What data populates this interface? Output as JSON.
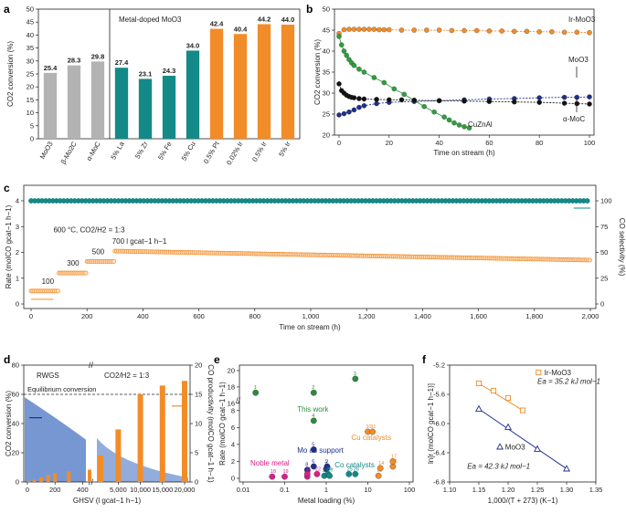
{
  "chart_data": [
    {
      "panel": "a",
      "type": "bar",
      "ylabel": "CO2 conversion (%)",
      "ylim": [
        0,
        50
      ],
      "yticks": [
        0,
        5,
        10,
        15,
        20,
        25,
        30,
        35,
        40,
        45,
        50
      ],
      "annotation": "Metal-doped MoO3",
      "categories": [
        "MoO3",
        "β-Mo2C",
        "α-MoC",
        "5% La",
        "5% Zr",
        "5% Fe",
        "5% Cu",
        "0.5% Pt",
        "0.02% Ir",
        "0.5% Ir",
        "5% Ir"
      ],
      "values": [
        25.4,
        28.3,
        29.8,
        27.4,
        23.1,
        24.3,
        34.0,
        42.4,
        40.4,
        44.2,
        44.0
      ],
      "value_labels": [
        "25.4",
        "28.3",
        "29.8",
        "27.4",
        "23.1",
        "24.3",
        "34.0",
        "42.4",
        "40.4",
        "44.2",
        "44.0"
      ],
      "colors": [
        "#b3b3b3",
        "#b3b3b3",
        "#b3b3b3",
        "#138a88",
        "#138a88",
        "#138a88",
        "#138a88",
        "#f28c28",
        "#f28c28",
        "#f28c28",
        "#f28c28"
      ]
    },
    {
      "panel": "b",
      "type": "line",
      "xlabel": "Time on stream (h)",
      "ylabel": "CO2 conversion (%)",
      "xlim": [
        0,
        100
      ],
      "ylim": [
        20,
        50
      ],
      "xticks": [
        0,
        20,
        40,
        60,
        80,
        100
      ],
      "yticks": [
        20,
        25,
        30,
        35,
        40,
        45,
        50
      ],
      "series": [
        {
          "name": "Ir-MoO3",
          "color": "#f28c28",
          "x": [
            0,
            2,
            4,
            6,
            8,
            10,
            12,
            14,
            16,
            18,
            20,
            25,
            30,
            35,
            40,
            45,
            50,
            55,
            60,
            65,
            70,
            75,
            80,
            85,
            90,
            95,
            100
          ],
          "y": [
            44.2,
            45.1,
            45.2,
            45.2,
            45.2,
            45.2,
            45.2,
            45.2,
            45.1,
            45.1,
            45.1,
            45.0,
            45.0,
            45.0,
            45.0,
            44.9,
            44.9,
            44.9,
            44.8,
            44.8,
            44.7,
            44.7,
            44.6,
            44.6,
            44.5,
            44.5,
            44.4
          ]
        },
        {
          "name": "CuZnAl",
          "color": "#2e9e3e",
          "x": [
            0,
            1,
            2,
            3,
            4,
            5,
            6,
            8,
            10,
            14,
            18,
            22,
            26,
            30,
            34,
            38,
            42,
            44,
            46,
            48,
            50,
            52
          ],
          "y": [
            43.5,
            41.5,
            40.0,
            39.0,
            38.0,
            37.2,
            36.6,
            35.7,
            35.0,
            33.7,
            32.5,
            31.0,
            29.7,
            28.3,
            26.8,
            25.5,
            24.3,
            23.6,
            22.9,
            22.4,
            22.0,
            21.7
          ]
        },
        {
          "name": "MoO3",
          "color": "#1f2f8a",
          "x": [
            0,
            2,
            4,
            6,
            8,
            10,
            15,
            20,
            30,
            40,
            50,
            60,
            70,
            80,
            90,
            95,
            100
          ],
          "y": [
            24.8,
            25.1,
            25.5,
            26.0,
            26.6,
            27.0,
            27.5,
            27.8,
            28.0,
            28.2,
            28.4,
            28.6,
            28.7,
            28.9,
            29.0,
            29.0,
            29.1
          ]
        },
        {
          "name": "α-MoC",
          "color": "#111111",
          "x": [
            0,
            1,
            2,
            3,
            4,
            5,
            6,
            8,
            10,
            15,
            20,
            25,
            30,
            40,
            50,
            60,
            70,
            80,
            90,
            95,
            100
          ],
          "y": [
            32.2,
            30.6,
            30.0,
            29.5,
            29.2,
            29.0,
            28.9,
            28.7,
            28.6,
            28.5,
            28.4,
            28.4,
            28.3,
            28.2,
            28.1,
            28.0,
            27.9,
            27.8,
            27.6,
            27.5,
            27.4
          ]
        }
      ]
    },
    {
      "panel": "c",
      "type": "scatter",
      "xlabel": "Time on stream (h)",
      "ylabel_left": "Rate (molCO gcat−1 h−1)",
      "ylabel_right": "CO selectivity (%)",
      "xlim": [
        0,
        2000
      ],
      "ylim_left": [
        0,
        4
      ],
      "ylim_right": [
        0,
        100
      ],
      "xticks": [
        0,
        200,
        400,
        600,
        800,
        1000,
        1200,
        1400,
        1600,
        1800,
        2000
      ],
      "yticks_left": [
        0,
        1,
        2,
        3,
        4
      ],
      "yticks_right": [
        0,
        25,
        50,
        75,
        100
      ],
      "condition": "600 °C, CO2/H2 = 1:3",
      "ghsv_labels": [
        "100",
        "300",
        "500",
        "700 l gcat−1 h−1"
      ],
      "rate_segments": [
        {
          "x_start": 0,
          "x_end": 100,
          "rate": 0.5,
          "ghsv": 100
        },
        {
          "x_start": 100,
          "x_end": 200,
          "rate": 1.2,
          "ghsv": 300
        },
        {
          "x_start": 200,
          "x_end": 300,
          "rate": 1.65,
          "ghsv": 500
        },
        {
          "x_start": 300,
          "x_end": 2000,
          "rate_start": 2.05,
          "rate_end": 1.7,
          "ghsv": 700
        }
      ],
      "co_selectivity": 100
    },
    {
      "panel": "d",
      "type": "bar",
      "xlabel": "GHSV (l gcat−1 h−1)",
      "ylabel_left": "CO2 conversion (%)",
      "ylabel_right": "CO productivity (molCO gcat−1 h−1)",
      "ylim_left": [
        0,
        80
      ],
      "ylim_right": [
        0,
        20
      ],
      "xticks": [
        "0",
        "200",
        "400",
        "5,000",
        "10,000",
        "15,000",
        "20,000"
      ],
      "title_left": "RWGS",
      "title_right": "CO2/H2 = 1:3",
      "equilibrium_label": "Equilibrium conversion",
      "equilibrium_value": 60,
      "ghsv_low": [
        10,
        50,
        100,
        150,
        200,
        300,
        450
      ],
      "co_productivity_low": [
        0.2,
        0.4,
        0.8,
        1.2,
        1.5,
        1.8,
        2.1
      ],
      "ghsv_high": [
        1000,
        5000,
        10000,
        15000,
        20000
      ],
      "co_productivity_high": [
        4.5,
        9.0,
        15.0,
        16.5,
        17.3
      ]
    },
    {
      "panel": "e",
      "type": "scatter",
      "xlabel": "Metal loading (%)",
      "ylabel": "Rate (molCO gcat−1 h−1)",
      "xscale": "log",
      "xlim": [
        0.01,
        100
      ],
      "xticks": [
        "0.01",
        "0.1",
        "1",
        "10",
        "100"
      ],
      "yticks": [
        0,
        2,
        4,
        6,
        8,
        16,
        18,
        20
      ],
      "group_labels": [
        "This work",
        "Cu catalysts",
        "Mo as support",
        "Co catalysts",
        "Noble metal"
      ],
      "points": [
        {
          "id": "1",
          "group": "This work",
          "x": 0.02,
          "y": 17.3
        },
        {
          "id": "2",
          "group": "This work",
          "x": 0.5,
          "y": 17.3
        },
        {
          "id": "3",
          "group": "This work",
          "x": 5,
          "y": 19.0
        },
        {
          "id": "4",
          "group": "This work",
          "x": 0.5,
          "y": 6.8
        },
        {
          "id": "5",
          "group": "Mo as support",
          "x": 0.5,
          "y": 3.4
        },
        {
          "id": "6",
          "group": "Mo as support",
          "x": 0.5,
          "y": 1.4
        },
        {
          "id": "7",
          "group": "Mo as support",
          "x": 1.0,
          "y": 1.1
        },
        {
          "id": "8",
          "group": "Mo as support",
          "x": 0.35,
          "y": 1.0
        },
        {
          "id": "9",
          "group": "Mo as support",
          "x": 1.05,
          "y": 1.4
        },
        {
          "id": "10",
          "group": "Cu catalysts",
          "x": 10,
          "y": 5.5
        },
        {
          "id": "11",
          "group": "Cu catalysts",
          "x": 13,
          "y": 5.5
        },
        {
          "id": "13",
          "group": "Cu catalysts",
          "x": 40,
          "y": 1.4
        },
        {
          "id": "14",
          "group": "Cu catalysts",
          "x": 20,
          "y": 1.2
        },
        {
          "id": "15",
          "group": "Cu catalysts",
          "x": 18,
          "y": 0.3
        },
        {
          "id": "17",
          "group": "Cu catalysts",
          "x": 40,
          "y": 2.0
        },
        {
          "id": "18",
          "group": "Noble metal",
          "x": 0.05,
          "y": 0.2
        },
        {
          "id": "19",
          "group": "Noble metal",
          "x": 0.1,
          "y": 0.2
        },
        {
          "id": "20",
          "group": "Noble metal",
          "x": 0.35,
          "y": 0.2
        },
        {
          "id": "21",
          "group": "Noble metal",
          "x": 0.35,
          "y": 0.5
        },
        {
          "id": "22",
          "group": "Noble metal",
          "x": 0.6,
          "y": 0.5
        },
        {
          "id": "23",
          "group": "Co catalysts",
          "x": 0.9,
          "y": 0.3
        },
        {
          "id": "24",
          "group": "Co catalysts",
          "x": 1.1,
          "y": 0.5
        },
        {
          "id": "25",
          "group": "Co catalysts",
          "x": 3.5,
          "y": 0.5
        },
        {
          "id": "26",
          "group": "Co catalysts",
          "x": 5,
          "y": 0.5
        },
        {
          "id": "27",
          "group": "Co catalysts",
          "x": 1.2,
          "y": 0.3
        }
      ],
      "group_colors": {
        "This work": "#2e8b3e",
        "Cu catalysts": "#f28c28",
        "Mo as support": "#1f2f8a",
        "Co catalysts": "#138a88",
        "Noble metal": "#d6208a"
      }
    },
    {
      "panel": "f",
      "type": "scatter",
      "xlabel": "1,000/(T + 273) (K−1)",
      "ylabel": "ln[r (molCO gcat−1 h−1)]",
      "xlim": [
        1.1,
        1.35
      ],
      "ylim": [
        -6.8,
        -5.2
      ],
      "xticks": [
        "1.10",
        "1.15",
        "1.20",
        "1.25",
        "1.30",
        "1.35"
      ],
      "yticks": [
        "-6.8",
        "-6.4",
        "-6.0",
        "-5.6",
        "-5.2"
      ],
      "series": [
        {
          "name": "Ir-MoO3",
          "marker": "square",
          "color": "#f28c28",
          "x": [
            1.15,
            1.175,
            1.2,
            1.225
          ],
          "y": [
            -5.45,
            -5.55,
            -5.65,
            -5.82
          ],
          "ea_label": "Ea = 35.2 kJ mol−1"
        },
        {
          "name": "MoO3",
          "marker": "triangle",
          "color": "#1f2f8a",
          "x": [
            1.15,
            1.2,
            1.25,
            1.3
          ],
          "y": [
            -5.8,
            -6.05,
            -6.35,
            -6.62
          ],
          "ea_label": "Ea = 42.3 kJ mol−1"
        }
      ]
    }
  ]
}
